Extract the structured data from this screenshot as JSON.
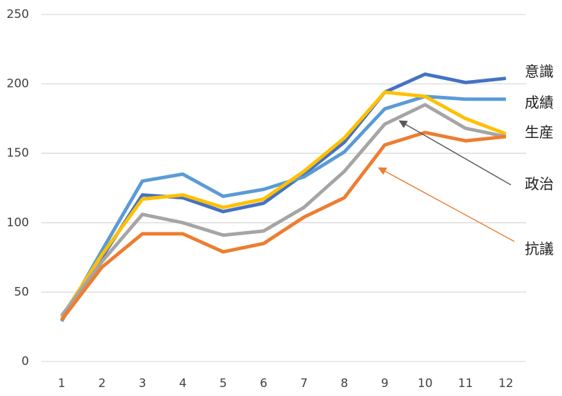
{
  "chart_data": {
    "type": "line",
    "categories": [
      "1",
      "2",
      "3",
      "4",
      "5",
      "6",
      "7",
      "8",
      "9",
      "10",
      "11",
      "12"
    ],
    "series": [
      {
        "name": "意識",
        "color": "#4472c4",
        "values": [
          30,
          75,
          120,
          118,
          108,
          114,
          135,
          158,
          194,
          207,
          201,
          204
        ]
      },
      {
        "name": "成績",
        "color": "#5b9bd5",
        "values": [
          29,
          80,
          130,
          135,
          119,
          124,
          133,
          151,
          182,
          191,
          189,
          189
        ]
      },
      {
        "name": "生産",
        "color": "#ffc000",
        "values": [
          32,
          77,
          117,
          120,
          111,
          117,
          137,
          161,
          194,
          191,
          175,
          164
        ]
      },
      {
        "name": "政治",
        "color": "#a5a5a5",
        "values": [
          33,
          72,
          106,
          100,
          91,
          94,
          111,
          137,
          171,
          185,
          168,
          162
        ]
      },
      {
        "name": "抗議",
        "color": "#ed7d31",
        "values": [
          30,
          68,
          92,
          92,
          79,
          85,
          104,
          118,
          156,
          165,
          159,
          162
        ]
      }
    ],
    "ylim": [
      0,
      250
    ],
    "yticks": [
      0,
      50,
      100,
      150,
      200,
      250
    ],
    "grid": true
  }
}
